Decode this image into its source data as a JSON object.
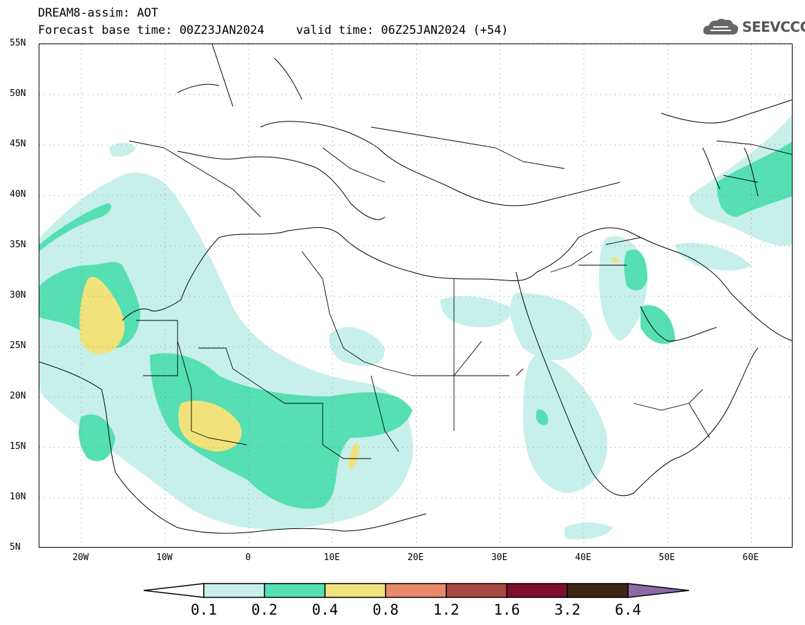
{
  "header": {
    "title_line1": "DREAM8-assim: AOT",
    "base_time": "Forecast base time: 00Z23JAN2024",
    "valid_time": "valid time: 06Z25JAN2024 (+54)"
  },
  "logo": {
    "text": "SEEVCCC",
    "icon": "cloud-icon"
  },
  "map": {
    "lat_labels": [
      "55N",
      "50N",
      "45N",
      "40N",
      "35N",
      "30N",
      "25N",
      "20N",
      "15N",
      "10N",
      "5N"
    ],
    "lon_labels": [
      "20W",
      "10W",
      "0",
      "10E",
      "20E",
      "30E",
      "40E",
      "50E",
      "60E"
    ],
    "extent": {
      "lon_min": -25,
      "lon_max": 65,
      "lat_min": 5,
      "lat_max": 55
    }
  },
  "colorbar": {
    "levels": [
      "0.1",
      "0.2",
      "0.4",
      "0.8",
      "1.2",
      "1.6",
      "3.2",
      "6.4"
    ],
    "colors": [
      "#ffffff",
      "#c7f0ea",
      "#55dfb3",
      "#f2e27c",
      "#e8896a",
      "#a8483f",
      "#7a0f2e",
      "#3b2414",
      "#8b6aa6"
    ]
  }
}
